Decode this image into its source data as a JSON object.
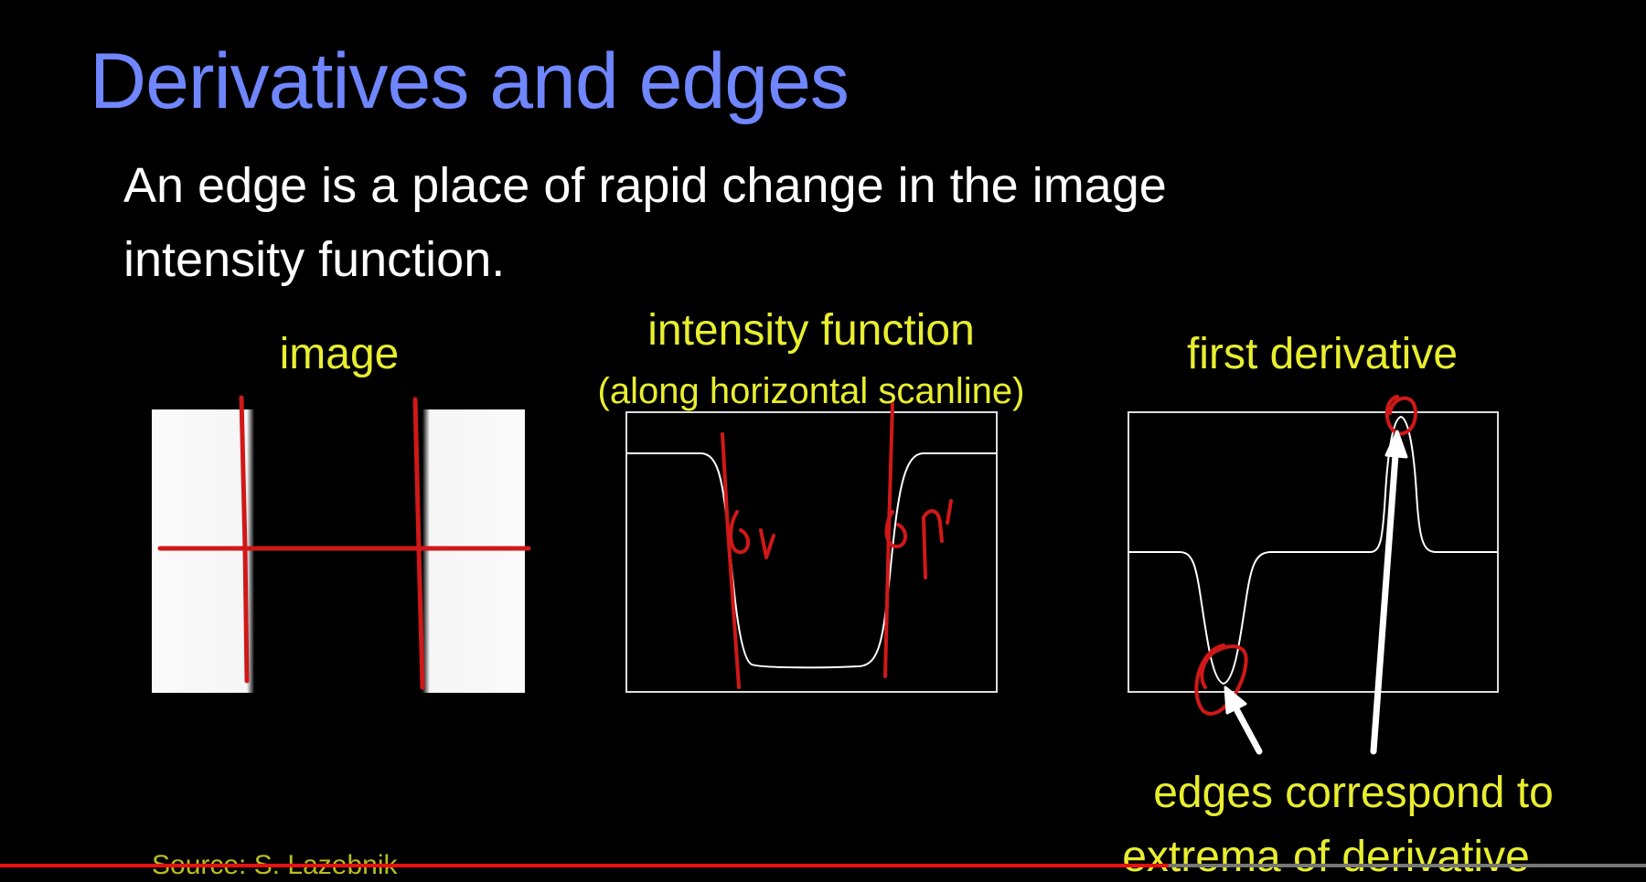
{
  "slide": {
    "title": "Derivatives and edges",
    "intro_line1": "An edge is a place of rapid change in the image",
    "intro_line2": "intensity function.",
    "labels": {
      "image": "image",
      "intensity": "intensity function",
      "scanline": "(along horizontal scanline)",
      "derivative": "first derivative"
    },
    "caption_line1": "edges correspond to",
    "caption_line2": "extrema of derivative",
    "source": "Source: S. Lazebnik"
  },
  "player": {
    "progress_fraction": 0.71
  },
  "colors": {
    "title": "#6f86ff",
    "text": "#ffffff",
    "label": "#e8ee2e",
    "annotation": "#d01818"
  },
  "icons": {
    "arrow-down": "arrow-down-icon",
    "arrow-up": "arrow-up-icon"
  }
}
